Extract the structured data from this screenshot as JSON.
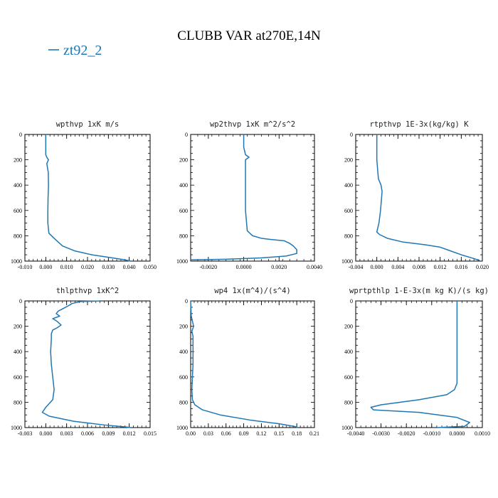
{
  "figure": {
    "title": "CLUBB VAR at270E,14N",
    "legend": [
      {
        "label": "zt92_2",
        "color": "#1f77b4"
      }
    ],
    "line_color": "#1f77b4"
  },
  "chart_data": [
    {
      "type": "line",
      "title": "wpthvp  1xK m/s",
      "xlim": [
        -0.01,
        0.05
      ],
      "ylim": [
        1000,
        0
      ],
      "xticks": [
        "-0.010",
        "0.000",
        "0.010",
        "0.020",
        "0.030",
        "0.040",
        "0.050"
      ],
      "yticks": [
        "0",
        "200",
        "400",
        "600",
        "800",
        "1000"
      ],
      "series": [
        {
          "x": [
            0.0,
            0.0,
            0.0,
            0.0005,
            0.0013,
            0.0005,
            0.0008,
            0.0012,
            0.0013,
            0.0011,
            0.001,
            0.001,
            0.0015,
            0.004,
            0.008,
            0.014,
            0.022,
            0.03,
            0.038,
            0.0405
          ],
          "y": [
            0,
            100,
            160,
            180,
            200,
            230,
            260,
            300,
            400,
            500,
            600,
            700,
            780,
            820,
            880,
            920,
            950,
            970,
            990,
            1000
          ]
        }
      ]
    },
    {
      "type": "line",
      "title": "wp2thvp  1xK m^2/s^2",
      "xlim": [
        -0.003,
        0.004
      ],
      "ylim": [
        1000,
        0
      ],
      "xticks": [
        "-0.0020",
        "0.0000",
        "0.0020",
        "0.0040"
      ],
      "yticks": [
        "0",
        "200",
        "400",
        "600",
        "800",
        "1000"
      ],
      "series": [
        {
          "x": [
            0.0,
            0.0,
            0.0001,
            0.0003,
            0.0001,
            0.0001,
            0.0001,
            0.0001,
            0.0001,
            0.0002,
            0.0005,
            0.001,
            0.0016,
            0.0023,
            0.0026,
            0.0028,
            0.003,
            0.003,
            0.0024,
            0.001,
            -0.001,
            -0.003
          ],
          "y": [
            0,
            100,
            160,
            180,
            200,
            230,
            300,
            400,
            600,
            760,
            800,
            820,
            830,
            840,
            860,
            880,
            910,
            940,
            960,
            975,
            985,
            990
          ]
        }
      ]
    },
    {
      "type": "line",
      "title": "rtpthvp  1E-3x(kg/kg) K",
      "xlim": [
        -0.004,
        0.02
      ],
      "ylim": [
        1000,
        0
      ],
      "xticks": [
        "-0.004",
        "0.000",
        "0.004",
        "0.008",
        "0.012",
        "0.016",
        "0.020"
      ],
      "yticks": [
        "0",
        "200",
        "400",
        "600",
        "800",
        "1000"
      ],
      "series": [
        {
          "x": [
            0.0,
            0.0,
            0.0002,
            0.0003,
            0.0008,
            0.001,
            0.0007,
            0.0004,
            0.0,
            0.0005,
            0.002,
            0.005,
            0.009,
            0.012,
            0.014,
            0.016,
            0.018,
            0.0195
          ],
          "y": [
            0,
            200,
            300,
            350,
            400,
            450,
            600,
            700,
            770,
            790,
            820,
            850,
            870,
            890,
            920,
            950,
            975,
            995
          ]
        }
      ]
    },
    {
      "type": "line",
      "title": "thlpthvp  1xK^2",
      "xlim": [
        -0.003,
        0.015
      ],
      "ylim": [
        1000,
        0
      ],
      "xticks": [
        "-0.003",
        "0.000",
        "0.003",
        "0.006",
        "0.009",
        "0.012",
        "0.015"
      ],
      "yticks": [
        "0",
        "200",
        "400",
        "600",
        "800",
        "1000"
      ],
      "series": [
        {
          "x": [
            0.0078,
            0.005,
            0.0038,
            0.0032,
            0.0025,
            0.0018,
            0.0015,
            0.002,
            0.001,
            0.0016,
            0.0022,
            0.0017,
            0.001,
            0.0008,
            0.0008,
            0.0007,
            0.0008,
            0.001,
            0.0012,
            0.001,
            0.0,
            -0.0005,
            0.0005,
            0.004,
            0.0085,
            0.0115,
            0.0122
          ],
          "y": [
            0,
            5,
            20,
            40,
            60,
            80,
            100,
            120,
            140,
            160,
            190,
            210,
            230,
            260,
            300,
            400,
            500,
            600,
            700,
            780,
            840,
            880,
            910,
            950,
            980,
            995,
            1000
          ]
        }
      ]
    },
    {
      "type": "line",
      "title": "wp4  1x(m^4)/(s^4)",
      "xlim": [
        0.0,
        0.21
      ],
      "ylim": [
        1000,
        0
      ],
      "xticks": [
        "0.00",
        "0.03",
        "0.06",
        "0.09",
        "0.12",
        "0.15",
        "0.18",
        "0.21"
      ],
      "yticks": [
        "0",
        "200",
        "400",
        "600",
        "800",
        "1000"
      ],
      "series": [
        {
          "x": [
            0.0,
            0.001,
            0.003,
            0.005,
            0.002,
            0.004,
            0.004,
            0.004,
            0.003,
            0.002,
            0.003,
            0.007,
            0.02,
            0.05,
            0.1,
            0.15,
            0.175,
            0.182
          ],
          "y": [
            0,
            120,
            160,
            200,
            240,
            280,
            400,
            500,
            600,
            700,
            780,
            820,
            860,
            900,
            940,
            970,
            990,
            1000
          ]
        }
      ]
    },
    {
      "type": "line",
      "title": "wprtpthlp  1-E-3x(m kg K)/(s kg)",
      "xlim": [
        -0.004,
        0.001
      ],
      "ylim": [
        1000,
        0
      ],
      "xticks": [
        "-0.0040",
        "-0.0030",
        "-0.0020",
        "-0.0010",
        "0.0000",
        "0.0010"
      ],
      "yticks": [
        "0",
        "200",
        "400",
        "600",
        "800",
        "1000"
      ],
      "series": [
        {
          "x": [
            0.0,
            0.0,
            0.0,
            -0.0001,
            -0.0004,
            -0.0015,
            -0.003,
            -0.0034,
            -0.0033,
            -0.0015,
            0.0,
            0.0005,
            0.0003,
            -0.0008
          ],
          "y": [
            0,
            400,
            650,
            700,
            740,
            780,
            820,
            840,
            860,
            880,
            920,
            960,
            990,
            1000
          ]
        }
      ]
    }
  ]
}
